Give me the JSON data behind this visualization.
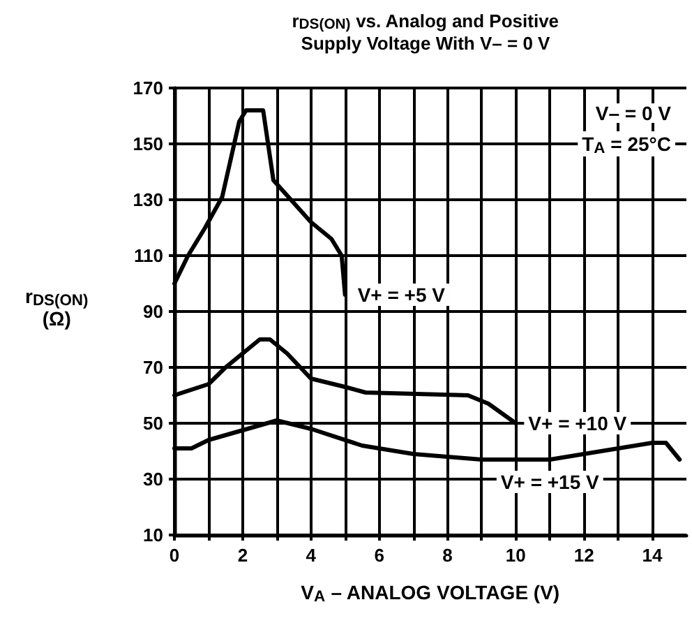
{
  "chart_data": {
    "type": "line",
    "title": "r$_{DS(ON)}$ vs. Analog and Positive\nSupply Voltage With V– = 0 V",
    "xlabel": "V$_{A}$ – ANALOG VOLTAGE (V)",
    "ylabel": "r$_{DS(ON)}$\n(Ω)",
    "annotations": [
      "V– = 0 V",
      "T$_{A}$ = 25°C"
    ],
    "series": [
      {
        "name": "V+ = +5 V",
        "color": "#000000",
        "x": [
          0,
          0.4,
          0.9,
          1.4,
          1.9,
          2.1,
          2.6,
          2.9,
          4.0,
          4.6,
          4.9,
          5.0
        ],
        "values": [
          100,
          110,
          120,
          131,
          158,
          162,
          162,
          137,
          122,
          116,
          110,
          96
        ]
      },
      {
        "name": "V+ = +10 V",
        "color": "#000000",
        "x": [
          0,
          1,
          1.5,
          2.5,
          2.8,
          3.3,
          4,
          5,
          5.6,
          8.6,
          9.2,
          10
        ],
        "values": [
          60,
          64,
          70,
          80,
          80,
          75,
          66,
          63,
          61,
          60,
          57,
          50
        ]
      },
      {
        "name": "V+ = +15 V",
        "color": "#000000",
        "x": [
          0,
          0.5,
          1,
          3,
          4,
          5.5,
          7,
          9,
          11,
          12.5,
          14,
          14.4,
          14.8
        ],
        "values": [
          41,
          41,
          44,
          51,
          48,
          42,
          39,
          37,
          37,
          40,
          43,
          43,
          37
        ]
      }
    ],
    "xlim": [
      0,
      15
    ],
    "xticks": [
      0,
      {
        "value": 1,
        "label": null
      },
      2,
      {
        "value": 3,
        "label": null
      },
      4,
      {
        "value": 5,
        "label": null
      },
      6,
      {
        "value": 7,
        "label": null
      },
      8,
      {
        "value": 9,
        "label": null
      },
      10,
      {
        "value": 11,
        "label": null
      },
      12,
      {
        "value": 13,
        "label": null
      },
      14
    ],
    "ylim": [
      10,
      170
    ],
    "yticks": [
      10,
      30,
      50,
      70,
      90,
      110,
      130,
      150,
      170
    ],
    "grid": true,
    "legend": false,
    "marker": "none",
    "line_style": "solid"
  }
}
